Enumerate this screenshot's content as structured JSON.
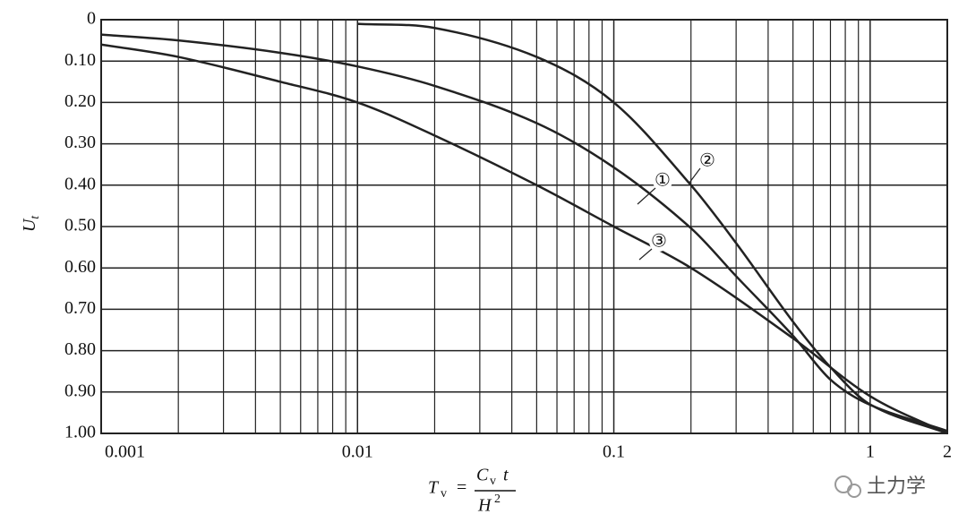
{
  "chart_data": {
    "type": "line",
    "ylabel": "U",
    "ylabel_sub": "t",
    "xlabel": {
      "lhs": "T",
      "lhs_sub": "v",
      "eq": "=",
      "num": "C",
      "num_sub": "v",
      "num_t": "t",
      "den": "H",
      "den_sup": "2"
    },
    "x_log": true,
    "y_inverted": true,
    "grid": true,
    "color": "#222222",
    "xlim": [
      0.001,
      2
    ],
    "xticks": [
      0.001,
      0.01,
      0.1,
      1,
      2
    ],
    "x_minor_grid": [
      0.002,
      0.003,
      0.004,
      0.005,
      0.006,
      0.007,
      0.008,
      0.009,
      0.02,
      0.03,
      0.04,
      0.05,
      0.06,
      0.07,
      0.08,
      0.09,
      0.2,
      0.3,
      0.4,
      0.5,
      0.6,
      0.7,
      0.8,
      0.9
    ],
    "ylim": [
      0,
      1
    ],
    "yticks": [
      0,
      {
        "value": 0.1,
        "label": "0.10"
      },
      {
        "value": 0.2,
        "label": "0.20"
      },
      {
        "value": 0.3,
        "label": "0.30"
      },
      {
        "value": 0.4,
        "label": "0.40"
      },
      {
        "value": 0.5,
        "label": "0.50"
      },
      {
        "value": 0.6,
        "label": "0.60"
      },
      {
        "value": 0.7,
        "label": "0.70"
      },
      {
        "value": 0.8,
        "label": "0.80"
      },
      {
        "value": 0.9,
        "label": "0.90"
      },
      {
        "value": 1,
        "label": "1.00"
      }
    ],
    "series": [
      {
        "name": "①",
        "x": [
          0.001,
          0.002,
          0.005,
          0.01,
          0.02,
          0.05,
          0.1,
          0.2,
          0.3,
          0.5,
          0.7,
          1,
          2
        ],
        "values": [
          0.036,
          0.05,
          0.08,
          0.113,
          0.16,
          0.25,
          0.357,
          0.504,
          0.62,
          0.764,
          0.87,
          0.931,
          0.994
        ]
      },
      {
        "name": "②",
        "x": [
          0.01,
          0.02,
          0.05,
          0.1,
          0.2,
          0.3,
          0.5,
          0.7,
          1,
          2
        ],
        "values": [
          0.01,
          0.02,
          0.09,
          0.2,
          0.4,
          0.54,
          0.73,
          0.84,
          0.93,
          1.0
        ]
      },
      {
        "name": "③",
        "x": [
          0.001,
          0.002,
          0.005,
          0.01,
          0.02,
          0.05,
          0.1,
          0.2,
          0.5,
          1,
          2
        ],
        "values": [
          0.06,
          0.09,
          0.15,
          0.2,
          0.28,
          0.4,
          0.5,
          0.6,
          0.77,
          0.91,
          1.0
        ]
      }
    ],
    "watermark": "土力学"
  }
}
